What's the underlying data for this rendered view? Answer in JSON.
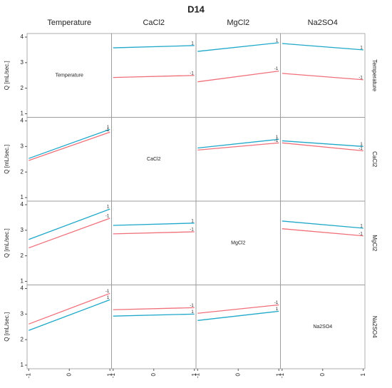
{
  "title": "D14",
  "columns": [
    "Temperature",
    "CaCl2",
    "MgCl2",
    "Na2SO4"
  ],
  "rows": [
    "Temperature",
    "CaCl2",
    "MgCl2",
    "Na2SO4"
  ],
  "ylabel": "Q [mL/sec.]",
  "chart_data": [
    {
      "type": "label",
      "label": "Temperature",
      "xlim": [
        -1.04,
        1.04
      ],
      "ylim": [
        0.86,
        4.14
      ],
      "yticks": [
        1,
        2,
        3,
        4
      ]
    },
    {
      "type": "line",
      "x": [
        -1,
        1
      ],
      "xlim": [
        -1.04,
        1.04
      ],
      "ylim": [
        0.86,
        4.14
      ],
      "series": [
        {
          "name": "1",
          "color": "#1fa8c9",
          "values": [
            3.58,
            3.67
          ]
        },
        {
          "name": "-1",
          "color": "#f0707a",
          "values": [
            2.42,
            2.5
          ]
        }
      ]
    },
    {
      "type": "line",
      "x": [
        -1,
        1
      ],
      "xlim": [
        -1.04,
        1.04
      ],
      "ylim": [
        0.86,
        4.14
      ],
      "series": [
        {
          "name": "1",
          "color": "#1fa8c9",
          "values": [
            3.44,
            3.78
          ]
        },
        {
          "name": "-1",
          "color": "#f0707a",
          "values": [
            2.25,
            2.67
          ]
        }
      ]
    },
    {
      "type": "line",
      "x": [
        -1,
        1
      ],
      "xlim": [
        -1.04,
        1.04
      ],
      "ylim": [
        0.86,
        4.14
      ],
      "series": [
        {
          "name": "1",
          "color": "#1fa8c9",
          "values": [
            3.75,
            3.5
          ]
        },
        {
          "name": "-1",
          "color": "#f0707a",
          "values": [
            2.58,
            2.33
          ]
        }
      ]
    },
    {
      "type": "line",
      "x": [
        -1,
        1
      ],
      "xlim": [
        -1.04,
        1.04
      ],
      "ylim": [
        0.86,
        4.14
      ],
      "yticks": [
        1,
        2,
        3,
        4
      ],
      "series": [
        {
          "name": "1",
          "color": "#1fa8c9",
          "values": [
            2.53,
            3.67
          ]
        },
        {
          "name": "-1",
          "color": "#f0707a",
          "values": [
            2.45,
            3.56
          ]
        }
      ]
    },
    {
      "type": "label",
      "label": "CaCl2",
      "xlim": [
        -1.04,
        1.04
      ],
      "ylim": [
        0.86,
        4.14
      ]
    },
    {
      "type": "line",
      "x": [
        -1,
        1
      ],
      "xlim": [
        -1.04,
        1.04
      ],
      "ylim": [
        0.86,
        4.14
      ],
      "series": [
        {
          "name": "1",
          "color": "#1fa8c9",
          "values": [
            2.94,
            3.28
          ]
        },
        {
          "name": "-1",
          "color": "#f0707a",
          "values": [
            2.86,
            3.14
          ]
        }
      ]
    },
    {
      "type": "line",
      "x": [
        -1,
        1
      ],
      "xlim": [
        -1.04,
        1.04
      ],
      "ylim": [
        0.86,
        4.14
      ],
      "series": [
        {
          "name": "1",
          "color": "#1fa8c9",
          "values": [
            3.22,
            3.0
          ]
        },
        {
          "name": "-1",
          "color": "#f0707a",
          "values": [
            3.14,
            2.83
          ]
        }
      ]
    },
    {
      "type": "line",
      "x": [
        -1,
        1
      ],
      "xlim": [
        -1.04,
        1.04
      ],
      "ylim": [
        0.86,
        4.14
      ],
      "yticks": [
        1,
        2,
        3,
        4
      ],
      "series": [
        {
          "name": "1",
          "color": "#1fa8c9",
          "values": [
            2.64,
            3.83
          ]
        },
        {
          "name": "-1",
          "color": "#f0707a",
          "values": [
            2.31,
            3.47
          ]
        }
      ]
    },
    {
      "type": "line",
      "x": [
        -1,
        1
      ],
      "xlim": [
        -1.04,
        1.04
      ],
      "ylim": [
        0.86,
        4.14
      ],
      "series": [
        {
          "name": "1",
          "color": "#1fa8c9",
          "values": [
            3.19,
            3.28
          ]
        },
        {
          "name": "-1",
          "color": "#f0707a",
          "values": [
            2.86,
            2.94
          ]
        }
      ]
    },
    {
      "type": "label",
      "label": "MgCl2",
      "xlim": [
        -1.04,
        1.04
      ],
      "ylim": [
        0.86,
        4.14
      ]
    },
    {
      "type": "line",
      "x": [
        -1,
        1
      ],
      "xlim": [
        -1.04,
        1.04
      ],
      "ylim": [
        0.86,
        4.14
      ],
      "series": [
        {
          "name": "1",
          "color": "#1fa8c9",
          "values": [
            3.36,
            3.08
          ]
        },
        {
          "name": "-1",
          "color": "#f0707a",
          "values": [
            3.06,
            2.78
          ]
        }
      ]
    },
    {
      "type": "line",
      "x": [
        -1,
        1
      ],
      "xlim": [
        -1.04,
        1.04
      ],
      "ylim": [
        0.86,
        4.14
      ],
      "yticks": [
        1,
        2,
        3,
        4
      ],
      "xticks": [
        -1,
        0,
        1
      ],
      "series": [
        {
          "name": "1",
          "color": "#1fa8c9",
          "values": [
            2.36,
            3.56
          ]
        },
        {
          "name": "-1",
          "color": "#f0707a",
          "values": [
            2.61,
            3.81
          ]
        }
      ]
    },
    {
      "type": "line",
      "x": [
        -1,
        1
      ],
      "xlim": [
        -1.04,
        1.04
      ],
      "ylim": [
        0.86,
        4.14
      ],
      "xticks": [
        -1,
        0,
        1
      ],
      "series": [
        {
          "name": "1",
          "color": "#1fa8c9",
          "values": [
            2.92,
            3.0
          ]
        },
        {
          "name": "-1",
          "color": "#f0707a",
          "values": [
            3.17,
            3.25
          ]
        }
      ]
    },
    {
      "type": "line",
      "x": [
        -1,
        1
      ],
      "xlim": [
        -1.04,
        1.04
      ],
      "ylim": [
        0.86,
        4.14
      ],
      "xticks": [
        -1,
        0,
        1
      ],
      "series": [
        {
          "name": "1",
          "color": "#1fa8c9",
          "values": [
            2.75,
            3.11
          ]
        },
        {
          "name": "-1",
          "color": "#f0707a",
          "values": [
            3.03,
            3.36
          ]
        }
      ]
    },
    {
      "type": "label",
      "label": "Na2SO4",
      "xlim": [
        -1.04,
        1.04
      ],
      "ylim": [
        0.86,
        4.14
      ],
      "xticks": [
        -1,
        0,
        1
      ]
    }
  ]
}
